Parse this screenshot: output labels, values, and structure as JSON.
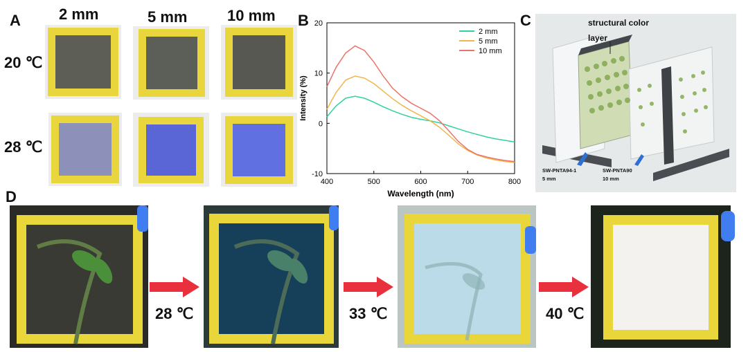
{
  "panel_labels": {
    "a": "A",
    "b": "B",
    "c": "C",
    "d": "D"
  },
  "panel_a": {
    "columns": [
      "2 mm",
      "5 mm",
      "10 mm"
    ],
    "rows": [
      "20 ℃",
      "28 ℃"
    ]
  },
  "panel_c": {
    "title_line1": "structural color",
    "title_line2": "layer",
    "left_line1": "SW-PNTA94-1",
    "left_line2": "5 mm",
    "right_line1": "SW-PNTA90",
    "right_line2": "10 mm"
  },
  "panel_d": {
    "temps": [
      "28 ℃",
      "33 ℃",
      "40 ℃"
    ]
  },
  "chart_data": {
    "type": "line",
    "title": "",
    "xlabel": "Wavelength (nm)",
    "ylabel": "Intensity (%)",
    "xlim": [
      400,
      800
    ],
    "ylim": [
      -10,
      20
    ],
    "xticks": [
      400,
      500,
      600,
      700,
      800
    ],
    "yticks": [
      -10,
      0,
      10,
      20
    ],
    "legend_position": "top-right",
    "series": [
      {
        "name": "2 mm",
        "color": "#2ed39a",
        "x": [
          400,
          420,
          440,
          460,
          480,
          500,
          520,
          540,
          560,
          580,
          600,
          620,
          640,
          660,
          680,
          700,
          720,
          740,
          760,
          780,
          800
        ],
        "y": [
          1.3,
          3.5,
          5.0,
          5.4,
          5.0,
          4.2,
          3.3,
          2.5,
          1.8,
          1.2,
          0.8,
          0.5,
          0.1,
          -0.5,
          -1.1,
          -1.7,
          -2.2,
          -2.7,
          -3.1,
          -3.4,
          -3.7
        ]
      },
      {
        "name": "5 mm",
        "color": "#f0b64a",
        "x": [
          400,
          420,
          440,
          460,
          480,
          500,
          520,
          540,
          560,
          580,
          600,
          620,
          640,
          660,
          680,
          700,
          720,
          740,
          760,
          780,
          800
        ],
        "y": [
          2.8,
          6.2,
          8.6,
          9.4,
          9.0,
          7.9,
          6.4,
          4.9,
          3.6,
          2.5,
          1.5,
          0.5,
          -0.8,
          -2.4,
          -4.1,
          -5.4,
          -6.3,
          -6.9,
          -7.3,
          -7.6,
          -7.8
        ]
      },
      {
        "name": "10 mm",
        "color": "#e9746a",
        "x": [
          400,
          420,
          440,
          460,
          480,
          500,
          520,
          540,
          560,
          580,
          600,
          620,
          640,
          660,
          680,
          700,
          720,
          740,
          760,
          780,
          800
        ],
        "y": [
          7.3,
          11.2,
          14.0,
          15.4,
          14.5,
          12.2,
          9.4,
          7.0,
          5.3,
          4.0,
          3.0,
          2.0,
          0.5,
          -1.5,
          -3.6,
          -5.2,
          -6.2,
          -6.7,
          -7.1,
          -7.4,
          -7.6
        ]
      }
    ]
  }
}
